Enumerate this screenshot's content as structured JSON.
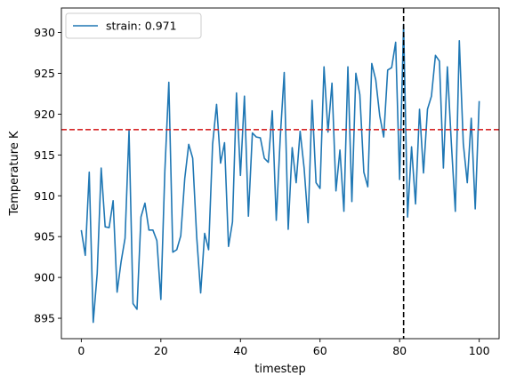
{
  "chart_data": {
    "type": "line",
    "xlabel": "timestep",
    "ylabel": "Temperature K",
    "xlim": [
      -5,
      105
    ],
    "ylim": [
      892.5,
      933
    ],
    "xticks": [
      0,
      20,
      40,
      60,
      80,
      100
    ],
    "yticks": [
      895,
      900,
      905,
      910,
      915,
      920,
      925,
      930
    ],
    "legend_position": "top-left",
    "grid": false,
    "colors": {
      "series": "#1f77b4",
      "hline": "#d62728",
      "vline": "#000000"
    },
    "series": [
      {
        "name": "strain: 0.971",
        "x": [
          0,
          1,
          2,
          3,
          4,
          5,
          6,
          7,
          8,
          9,
          10,
          11,
          12,
          13,
          14,
          15,
          16,
          17,
          18,
          19,
          20,
          21,
          22,
          23,
          24,
          25,
          26,
          27,
          28,
          29,
          30,
          31,
          32,
          33,
          34,
          35,
          36,
          37,
          38,
          39,
          40,
          41,
          42,
          43,
          44,
          45,
          46,
          47,
          48,
          49,
          50,
          51,
          52,
          53,
          54,
          55,
          56,
          57,
          58,
          59,
          60,
          61,
          62,
          63,
          64,
          65,
          66,
          67,
          68,
          69,
          70,
          71,
          72,
          73,
          74,
          75,
          76,
          77,
          78,
          79,
          80,
          81,
          82,
          83,
          84,
          85,
          86,
          87,
          88,
          89,
          90,
          91,
          92,
          93,
          94,
          95,
          96,
          97,
          98,
          99,
          100
        ],
        "y": [
          905.8,
          902.7,
          912.9,
          894.5,
          900.5,
          913.4,
          906.2,
          906.1,
          909.4,
          898.2,
          901.9,
          904.8,
          918.0,
          896.8,
          896.1,
          907.4,
          909.1,
          905.8,
          905.8,
          904.5,
          897.3,
          913.0,
          923.9,
          903.1,
          903.4,
          905.1,
          912.1,
          916.3,
          914.6,
          905.0,
          898.1,
          905.4,
          903.4,
          916.3,
          921.2,
          914.0,
          916.5,
          903.8,
          906.8,
          922.6,
          912.5,
          922.2,
          907.5,
          917.7,
          917.2,
          917.1,
          914.6,
          914.1,
          920.4,
          907.0,
          917.1,
          925.1,
          905.9,
          915.9,
          911.6,
          917.9,
          913.4,
          906.7,
          921.7,
          911.6,
          910.9,
          925.8,
          917.8,
          923.8,
          910.6,
          915.6,
          908.1,
          925.8,
          909.3,
          925.0,
          922.4,
          912.9,
          911.1,
          926.2,
          924.2,
          919.8,
          917.2,
          925.4,
          925.7,
          928.8,
          912.0,
          931.0,
          907.4,
          916.0,
          909.0,
          920.6,
          912.8,
          920.6,
          922.2,
          927.2,
          926.5,
          913.4,
          925.8,
          916.4,
          908.1,
          929.0,
          916.4,
          911.6,
          919.5,
          908.4,
          921.6
        ]
      }
    ],
    "reference_lines": [
      {
        "orientation": "horizontal",
        "value": 918.1,
        "style": "dashed",
        "color": "#d62728"
      },
      {
        "orientation": "vertical",
        "value": 81,
        "style": "dashed",
        "color": "#000000"
      }
    ]
  }
}
